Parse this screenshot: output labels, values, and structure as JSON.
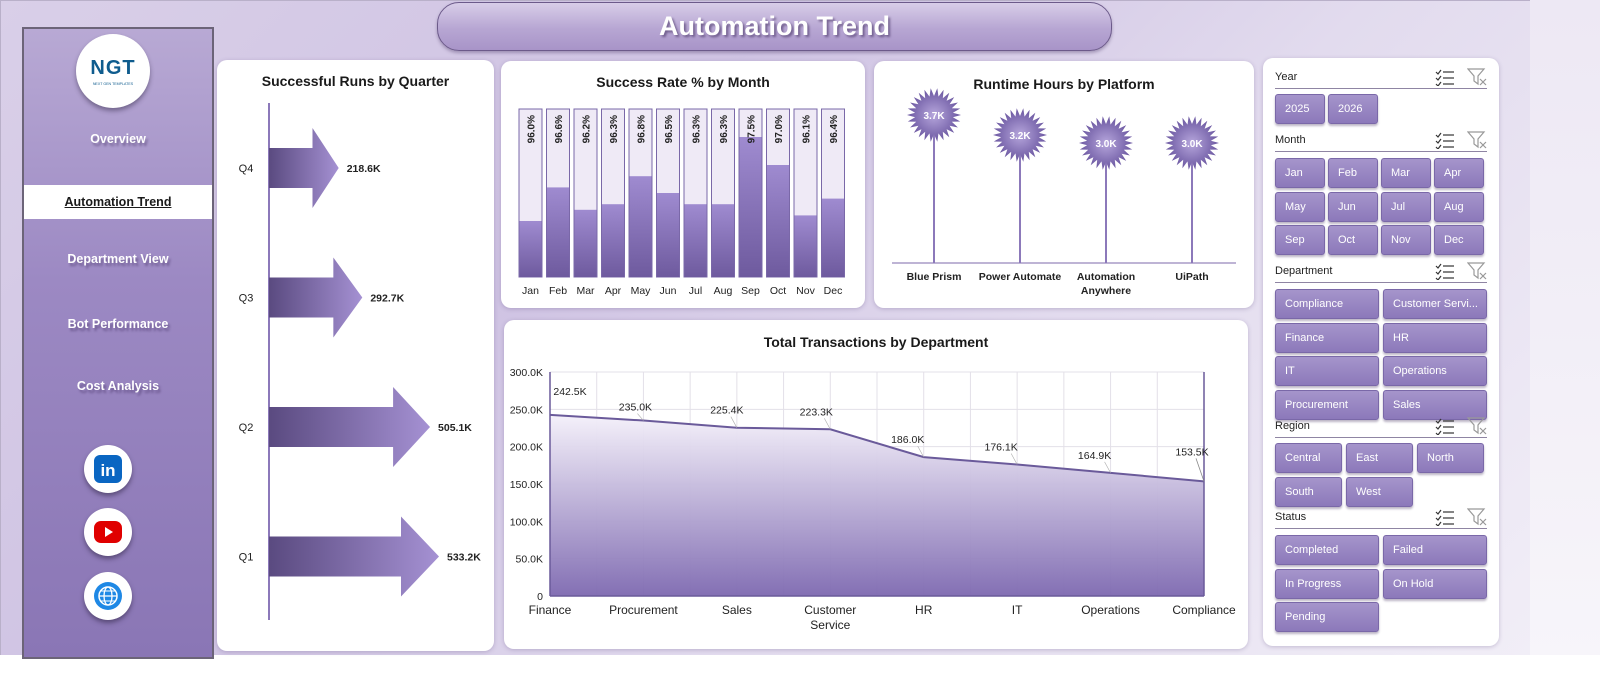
{
  "title": "Automation Trend",
  "logo": {
    "mark": "NGT",
    "sub": "NEXT GEN TEMPLATES"
  },
  "nav": {
    "items": [
      {
        "label": "Overview",
        "active": false
      },
      {
        "label": "Automation Trend",
        "active": true
      },
      {
        "label": "Department View",
        "active": false
      },
      {
        "label": "Bot Performance",
        "active": false
      },
      {
        "label": "Cost Analysis",
        "active": false
      }
    ]
  },
  "social": [
    {
      "icon": "linkedin-icon",
      "label": "in",
      "color": "#0a66c2"
    },
    {
      "icon": "youtube-icon",
      "label": "",
      "color": "#e00000"
    },
    {
      "icon": "globe-icon",
      "label": "",
      "color": "#1e88e5"
    }
  ],
  "colors": {
    "accent": "#8c79ba",
    "dark": "#6a5a9a",
    "light": "#efeaf6"
  },
  "charts": {
    "quarter": {
      "title": "Successful Runs by Quarter",
      "chart_data": {
        "type": "bar",
        "orientation": "horizontal",
        "categories": [
          "Q4",
          "Q3",
          "Q2",
          "Q1"
        ],
        "values": [
          218.6,
          292.7,
          505.1,
          533.2
        ],
        "value_labels": [
          "218.6K",
          "292.7K",
          "505.1K",
          "533.2K"
        ],
        "unit": "K"
      }
    },
    "success": {
      "title": "Success Rate % by Month",
      "chart_data": {
        "type": "bar",
        "categories": [
          "Jan",
          "Feb",
          "Mar",
          "Apr",
          "May",
          "Jun",
          "Jul",
          "Aug",
          "Sep",
          "Oct",
          "Nov",
          "Dec"
        ],
        "values": [
          96.0,
          96.6,
          96.2,
          96.3,
          96.8,
          96.5,
          96.3,
          96.3,
          97.5,
          97.0,
          96.1,
          96.4
        ],
        "value_labels": [
          "96.0%",
          "96.6%",
          "96.2%",
          "96.3%",
          "96.8%",
          "96.5%",
          "96.3%",
          "96.3%",
          "97.5%",
          "97.0%",
          "96.1%",
          "96.4%"
        ],
        "ylim": [
          95,
          98
        ]
      }
    },
    "runtime": {
      "title": "Runtime Hours by Platform",
      "chart_data": {
        "type": "bar",
        "style": "lollipop",
        "categories": [
          "Blue Prism",
          "Power Automate",
          "Automation Anywhere",
          "UiPath"
        ],
        "category_lines": [
          [
            "Blue Prism"
          ],
          [
            "Power Automate"
          ],
          [
            "Automation",
            "Anywhere"
          ],
          [
            "UiPath"
          ]
        ],
        "values": [
          3.7,
          3.2,
          3.0,
          3.0
        ],
        "value_labels": [
          "3.7K",
          "3.2K",
          "3.0K",
          "3.0K"
        ],
        "ylim": [
          0,
          4
        ]
      }
    },
    "transactions": {
      "title": "Total Transactions by Department",
      "chart_data": {
        "type": "area",
        "categories": [
          "Finance",
          "Procurement",
          "Sales",
          "Customer Service",
          "HR",
          "IT",
          "Operations",
          "Compliance"
        ],
        "category_lines": [
          [
            "Finance"
          ],
          [
            "Procurement"
          ],
          [
            "Sales"
          ],
          [
            "Customer",
            "Service"
          ],
          [
            "HR"
          ],
          [
            "IT"
          ],
          [
            "Operations"
          ],
          [
            "Compliance"
          ]
        ],
        "values": [
          242.5,
          235.0,
          225.4,
          223.3,
          186.0,
          176.1,
          164.9,
          153.5
        ],
        "value_labels": [
          "242.5K",
          "235.0K",
          "225.4K",
          "223.3K",
          "186.0K",
          "176.1K",
          "164.9K",
          "153.5K"
        ],
        "ylim": [
          0,
          300
        ],
        "yticks": [
          0,
          50,
          100,
          150,
          200,
          250,
          300
        ],
        "ytick_labels": [
          "0",
          "50.0K",
          "100.0K",
          "150.0K",
          "200.0K",
          "250.0K",
          "300.0K"
        ],
        "grid": true
      }
    }
  },
  "slicers": [
    {
      "label": "Year",
      "cols": 4,
      "items": [
        "2025",
        "2026"
      ]
    },
    {
      "label": "Month",
      "cols": 4,
      "items": [
        "Jan",
        "Feb",
        "Mar",
        "Apr",
        "May",
        "Jun",
        "Jul",
        "Aug",
        "Sep",
        "Oct",
        "Nov",
        "Dec"
      ]
    },
    {
      "label": "Department",
      "cols": 2,
      "items": [
        "Compliance",
        "Customer Servi...",
        "Finance",
        "HR",
        "IT",
        "Operations",
        "Procurement",
        "Sales"
      ]
    },
    {
      "label": "Region",
      "cols": 3,
      "items": [
        "Central",
        "East",
        "North",
        "South",
        "West"
      ]
    },
    {
      "label": "Status",
      "cols": 2,
      "items": [
        "Completed",
        "Failed",
        "In Progress",
        "On Hold",
        "Pending"
      ]
    }
  ]
}
